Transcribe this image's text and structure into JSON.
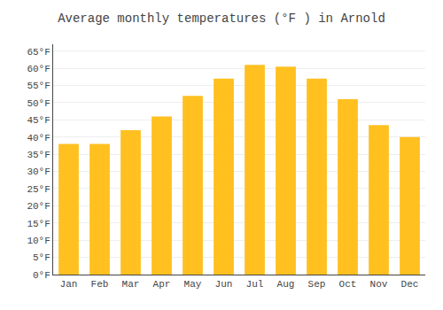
{
  "chart_data": {
    "type": "bar",
    "title": "Average monthly temperatures (°F ) in Arnold",
    "categories": [
      "Jan",
      "Feb",
      "Mar",
      "Apr",
      "May",
      "Jun",
      "Jul",
      "Aug",
      "Sep",
      "Oct",
      "Nov",
      "Dec"
    ],
    "values": [
      38,
      38,
      42,
      46,
      52,
      57,
      61,
      60.5,
      57,
      51,
      43.5,
      40
    ],
    "color": "#FFC020",
    "ylim": [
      0,
      67
    ],
    "yticks": [
      {
        "value": 0,
        "label": "0°F"
      },
      {
        "value": 5,
        "label": "5°F"
      },
      {
        "value": 10,
        "label": "10°F"
      },
      {
        "value": 15,
        "label": "15°F"
      },
      {
        "value": 20,
        "label": "20°F"
      },
      {
        "value": 25,
        "label": "25°F"
      },
      {
        "value": 30,
        "label": "30°F"
      },
      {
        "value": 35,
        "label": "35°F"
      },
      {
        "value": 40,
        "label": "40°F"
      },
      {
        "value": 45,
        "label": "45°F"
      },
      {
        "value": 50,
        "label": "50°F"
      },
      {
        "value": 55,
        "label": "55°F"
      },
      {
        "value": 60,
        "label": "60°F"
      },
      {
        "value": 65,
        "label": "65°F"
      }
    ],
    "grid": true
  }
}
